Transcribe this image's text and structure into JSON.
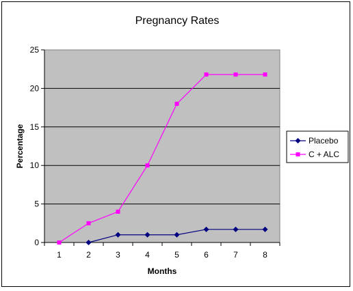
{
  "chart_data": {
    "type": "line",
    "title": "Pregnancy Rates",
    "xlabel": "Months",
    "ylabel": "Percentage",
    "categories": [
      "1",
      "2",
      "3",
      "4",
      "5",
      "6",
      "7",
      "8"
    ],
    "ylim": [
      0,
      25
    ],
    "yticks": [
      0,
      5,
      10,
      15,
      20,
      25
    ],
    "grid": true,
    "legend_position": "right",
    "plot_background": "#C0C0C0",
    "series": [
      {
        "name": "Placebo",
        "color": "#000080",
        "marker": "diamond",
        "values": [
          null,
          0,
          1,
          1,
          1,
          1.7,
          1.7,
          1.7
        ]
      },
      {
        "name": "C + ALC",
        "color": "#FF00FF",
        "marker": "square",
        "values": [
          0,
          2.5,
          4,
          10,
          18,
          21.8,
          21.8,
          21.8
        ]
      }
    ]
  }
}
